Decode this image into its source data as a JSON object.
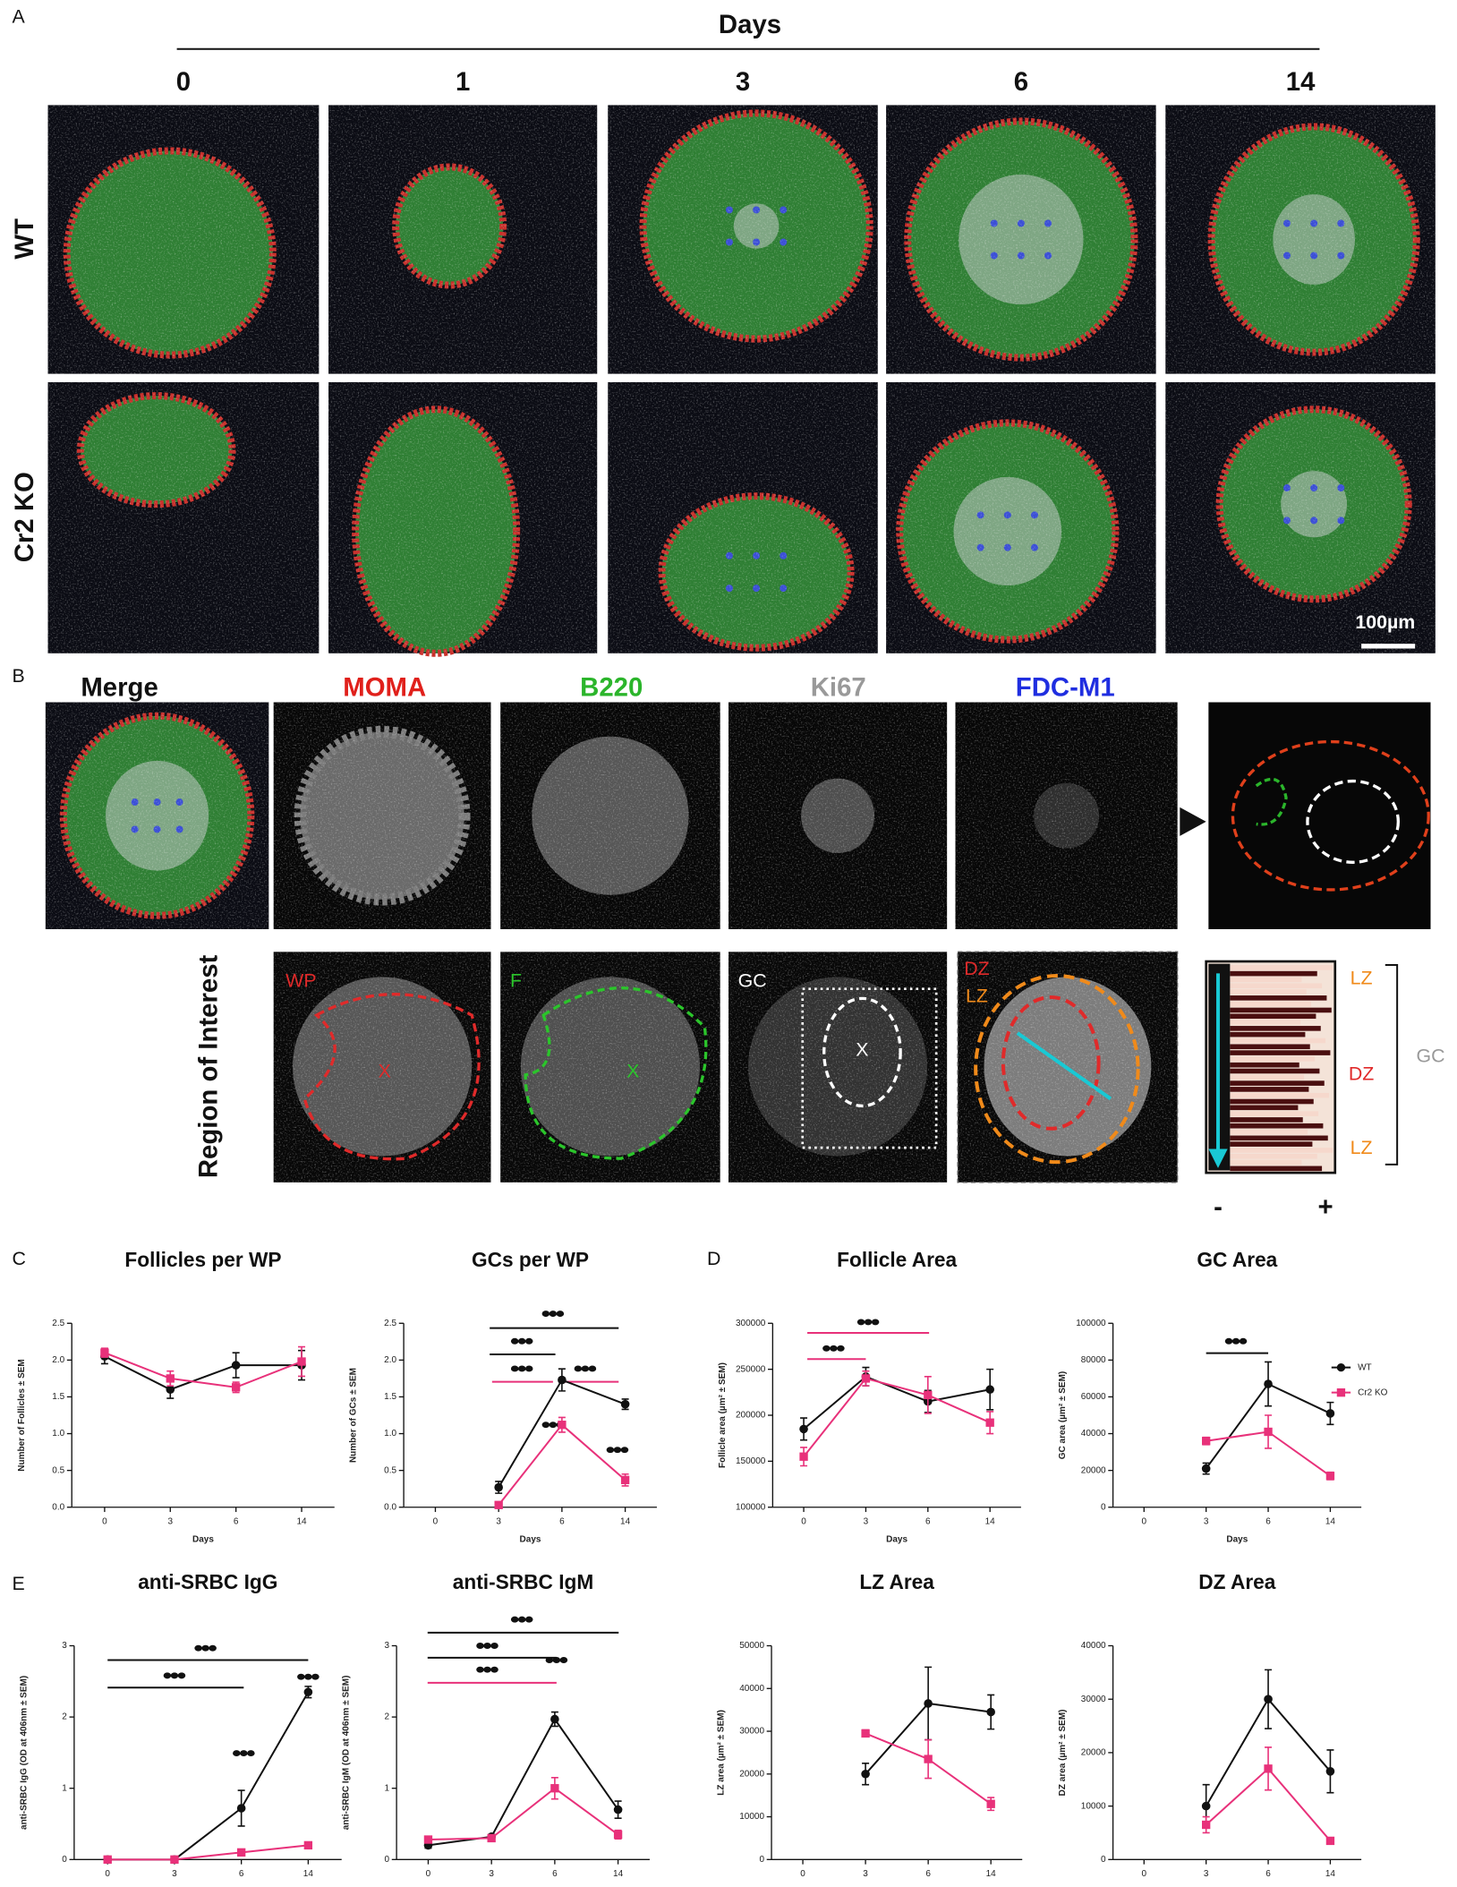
{
  "panel_a": {
    "label": "A",
    "axis_title": "Days",
    "days": [
      "0",
      "1",
      "3",
      "6",
      "14"
    ],
    "rows": [
      "WT",
      "Cr2 KO"
    ],
    "scale_bar": "100µm"
  },
  "panel_b": {
    "label": "B",
    "channels": [
      "Merge",
      "MOMA",
      "B220",
      "Ki67",
      "FDC-M1"
    ],
    "roi_title": "Region of Interest",
    "roi_labels": [
      "WP",
      "F",
      "GC",
      "DZ",
      "LZ"
    ],
    "x_marks": [
      "X",
      "X",
      "X"
    ],
    "zones": [
      "LZ",
      "DZ",
      "LZ"
    ],
    "zone_group": "GC",
    "signs": [
      "-",
      "+"
    ]
  },
  "panel_labels": [
    "C",
    "D",
    "E"
  ],
  "chart_data": [
    {
      "type": "line",
      "title": "Follicles per WP",
      "xlabel": "Days",
      "ylabel": "Number of Follicles ± SEM",
      "categories": [
        "0",
        "3",
        "6",
        "14"
      ],
      "ylim": [
        0,
        2.5
      ],
      "yticks": [
        {
          "value": 0,
          "label": "0.0"
        },
        0.5,
        {
          "value": 1,
          "label": "1.0"
        },
        1.5,
        {
          "value": 2,
          "label": "2.0"
        },
        2.5
      ],
      "series": [
        {
          "color": "#111111",
          "values": [
            2.05,
            1.6,
            1.93,
            1.93
          ],
          "errors": [
            0.1,
            0.12,
            0.17,
            0.2
          ]
        },
        {
          "color": "#e8317a",
          "values": [
            2.1,
            1.75,
            1.63,
            1.98
          ],
          "errors": [
            0.06,
            0.1,
            0.07,
            0.2
          ]
        }
      ]
    },
    {
      "type": "line",
      "title": "GCs per WP",
      "xlabel": "Days",
      "ylabel": "Number of GCs ± SEM",
      "categories": [
        "0",
        "3",
        "6",
        "14"
      ],
      "ylim": [
        0,
        2.5
      ],
      "yticks": [
        {
          "value": 0,
          "label": "0.0"
        },
        0.5,
        {
          "value": 1,
          "label": "1.0"
        },
        1.5,
        {
          "value": 2,
          "label": "2.0"
        },
        2.5
      ],
      "series": [
        {
          "color": "#111111",
          "values": [
            null,
            0.27,
            1.73,
            1.4
          ],
          "errors": [
            null,
            0.08,
            0.15,
            0.07
          ]
        },
        {
          "color": "#e8317a",
          "values": [
            null,
            0.03,
            1.12,
            0.37
          ],
          "errors": [
            null,
            0.02,
            0.1,
            0.08
          ]
        }
      ]
    },
    {
      "type": "line",
      "title": "Follicle Area",
      "xlabel": "Days",
      "ylabel": "Follicle area (µm² ± SEM)",
      "categories": [
        "0",
        "3",
        "6",
        "14"
      ],
      "ylim": [
        100000,
        300000
      ],
      "yticks": [
        100000,
        150000,
        200000,
        250000,
        300000
      ],
      "series": [
        {
          "color": "#111111",
          "values": [
            185000,
            242000,
            215000,
            228000
          ],
          "errors": [
            12000,
            10000,
            12000,
            22000
          ]
        },
        {
          "color": "#e8317a",
          "values": [
            155000,
            240000,
            222000,
            192000
          ],
          "errors": [
            10000,
            8000,
            20000,
            12000
          ]
        }
      ]
    },
    {
      "type": "line",
      "title": "GC Area",
      "xlabel": "Days",
      "ylabel": "GC area (µm² ± SEM)",
      "categories": [
        "0",
        "3",
        "6",
        "14"
      ],
      "ylim": [
        0,
        100000
      ],
      "yticks": [
        0,
        20000,
        40000,
        60000,
        80000,
        100000
      ],
      "series": [
        {
          "name": "WT",
          "color": "#111111",
          "values": [
            null,
            21000,
            67000,
            51000
          ],
          "errors": [
            null,
            3000,
            12000,
            6000
          ]
        },
        {
          "name": "Cr2 KO",
          "color": "#e8317a",
          "values": [
            null,
            36000,
            41000,
            17000
          ],
          "errors": [
            null,
            2000,
            9000,
            2000
          ]
        }
      ]
    },
    {
      "type": "line",
      "title": "anti-SRBC IgG",
      "xlabel": "Days",
      "ylabel": "anti-SRBC IgG (OD at 406nm ± SEM)",
      "categories": [
        "0",
        "3",
        "6",
        "14"
      ],
      "ylim": [
        0,
        3
      ],
      "yticks": [
        0,
        1,
        2,
        3
      ],
      "series": [
        {
          "color": "#111111",
          "values": [
            0,
            0,
            0.72,
            2.35
          ],
          "errors": [
            0.02,
            0.02,
            0.25,
            0.08
          ]
        },
        {
          "color": "#e8317a",
          "values": [
            0,
            0,
            0.1,
            0.2
          ],
          "errors": [
            0.02,
            0.02,
            0.03,
            0.04
          ]
        }
      ]
    },
    {
      "type": "line",
      "title": "anti-SRBC IgM",
      "xlabel": "Days",
      "ylabel": "anti-SRBC IgM (OD at 406nm ± SEM)",
      "categories": [
        "0",
        "3",
        "6",
        "14"
      ],
      "ylim": [
        0,
        3
      ],
      "yticks": [
        0,
        1,
        2,
        3
      ],
      "series": [
        {
          "color": "#111111",
          "values": [
            0.2,
            0.32,
            1.97,
            0.7
          ],
          "errors": [
            0.04,
            0.03,
            0.1,
            0.12
          ]
        },
        {
          "color": "#e8317a",
          "values": [
            0.28,
            0.3,
            1.0,
            0.35
          ],
          "errors": [
            0.04,
            0.03,
            0.15,
            0.06
          ]
        }
      ]
    },
    {
      "type": "line",
      "title": "LZ Area",
      "xlabel": "Days",
      "ylabel": "LZ area (µm² ± SEM)",
      "categories": [
        "0",
        "3",
        "6",
        "14"
      ],
      "ylim": [
        0,
        50000
      ],
      "yticks": [
        0,
        10000,
        20000,
        30000,
        40000,
        50000
      ],
      "series": [
        {
          "color": "#111111",
          "values": [
            null,
            20000,
            36500,
            34500
          ],
          "errors": [
            null,
            2500,
            8500,
            4000
          ]
        },
        {
          "color": "#e8317a",
          "values": [
            null,
            29500,
            23500,
            13000
          ],
          "errors": [
            null,
            800,
            4500,
            1500
          ]
        }
      ]
    },
    {
      "type": "line",
      "title": "DZ Area",
      "xlabel": "Days",
      "ylabel": "DZ area (µm² ± SEM)",
      "categories": [
        "0",
        "3",
        "6",
        "14"
      ],
      "ylim": [
        0,
        40000
      ],
      "yticks": [
        0,
        10000,
        20000,
        30000,
        40000
      ],
      "series": [
        {
          "color": "#111111",
          "values": [
            null,
            10000,
            30000,
            16500
          ],
          "errors": [
            null,
            4000,
            5500,
            4000
          ]
        },
        {
          "color": "#e8317a",
          "values": [
            null,
            6500,
            17000,
            3500
          ],
          "errors": [
            null,
            1500,
            4000,
            500
          ]
        }
      ]
    }
  ]
}
